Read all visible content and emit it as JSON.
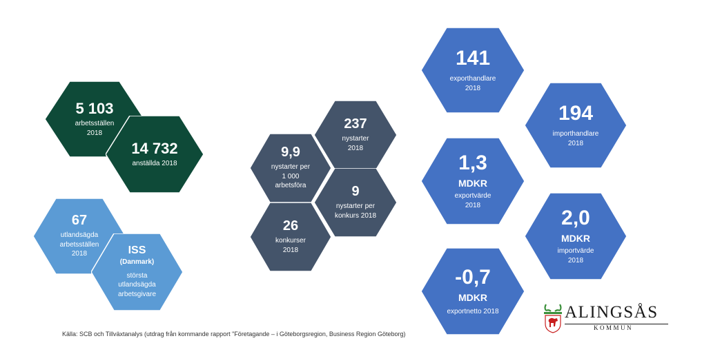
{
  "colors": {
    "dark_green": "#0e4a38",
    "slate": "#44546a",
    "light_blue": "#5b9bd5",
    "royal_blue": "#4472c4"
  },
  "hex_green_1": {
    "value": "5 103",
    "label1": "arbetsställen",
    "label2": "2018"
  },
  "hex_green_2": {
    "value": "14 732",
    "label1": "anställda 2018"
  },
  "hex_lb_1": {
    "value": "67",
    "label1": "utlandsägda",
    "label2": "arbetsställen",
    "label3": "2018"
  },
  "hex_lb_2": {
    "value": "ISS",
    "label_bold": "(Danmark)",
    "label1": "största",
    "label2": "utlandsägda",
    "label3": "arbetsgivare"
  },
  "hex_slate_1": {
    "value": "237",
    "label1": "nystarter",
    "label2": "2018"
  },
  "hex_slate_2": {
    "value": "9,9",
    "label1": "nystarter per",
    "label2": "1 000",
    "label3": "arbetsföra"
  },
  "hex_slate_3": {
    "value": "9",
    "label1": "nystarter per",
    "label2": "konkurs 2018"
  },
  "hex_slate_4": {
    "value": "26",
    "label1": "konkurser",
    "label2": "2018"
  },
  "hex_blue_1": {
    "value": "141",
    "label1": "exporthandlare",
    "label2": "2018"
  },
  "hex_blue_2": {
    "value": "194",
    "label1": "importhandlare",
    "label2": "2018"
  },
  "hex_blue_3": {
    "value": "1,3",
    "unit": "MDKR",
    "label1": "exportvärde",
    "label2": "2018"
  },
  "hex_blue_4": {
    "value": "2,0",
    "unit": "MDKR",
    "label1": "importvärde",
    "label2": "2018"
  },
  "hex_blue_5": {
    "value": "-0,7",
    "unit": "MDKR",
    "label1": "exportnetto 2018"
  },
  "source": "Källa: SCB och Tillväxtanalys (utdrag från kommande rapport \"Företagande – i Göteborgsregion, Business Region Göteborg)",
  "logo": {
    "name": "ALINGSÅS",
    "sub": "KOMMUN",
    "icon": "moose-crest-icon"
  }
}
